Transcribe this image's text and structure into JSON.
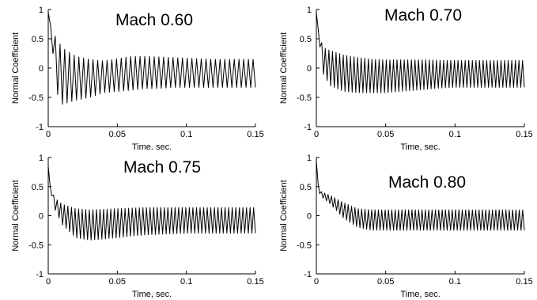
{
  "chart_data": [
    {
      "type": "line",
      "title": "Mach 0.60",
      "xlabel": "Time. sec.",
      "ylabel": "Normal Coefficient",
      "xlim": [
        0,
        0.15
      ],
      "ylim": [
        -1,
        1
      ],
      "xticks": [
        "0",
        "0.05",
        "0.1",
        "0.15"
      ],
      "yticks": [
        "1",
        "0.5",
        "0",
        "-0.5",
        "-1"
      ],
      "grid": false,
      "series": [
        {
          "values_description_free": true,
          "x": [
            0,
            0.001,
            0.002,
            0.003,
            0.005,
            0.01,
            0.02,
            0.03,
            0.04,
            0.05,
            0.06,
            0.07,
            0.08,
            0.09,
            0.1,
            0.11,
            0.12,
            0.13,
            0.14,
            0.15
          ],
          "upper": [
            0.95,
            0.75,
            0.7,
            0.65,
            0.55,
            0.35,
            0.2,
            0.15,
            0.12,
            0.16,
            0.2,
            0.2,
            0.19,
            0.18,
            0.17,
            0.16,
            0.15,
            0.15,
            0.15,
            0.15
          ],
          "lower": [
            0.95,
            0.6,
            0.55,
            0.4,
            -0.35,
            -0.62,
            -0.55,
            -0.5,
            -0.42,
            -0.4,
            -0.38,
            -0.35,
            -0.35,
            -0.33,
            -0.33,
            -0.33,
            -0.33,
            -0.33,
            -0.33,
            -0.33
          ],
          "cycles": 44
        }
      ]
    },
    {
      "type": "line",
      "title": "Mach 0.70",
      "xlabel": "Time, sec.",
      "ylabel": "Normal Coefficient",
      "xlim": [
        0,
        0.15
      ],
      "ylim": [
        -1,
        1
      ],
      "xticks": [
        "0",
        "0.05",
        "0.1",
        "0.15"
      ],
      "yticks": [
        "1",
        "0.5",
        "0",
        "-0.5",
        "-1"
      ],
      "grid": false,
      "series": [
        {
          "x": [
            0,
            0.001,
            0.002,
            0.003,
            0.005,
            0.01,
            0.02,
            0.03,
            0.04,
            0.05,
            0.06,
            0.07,
            0.08,
            0.09,
            0.1,
            0.11,
            0.12,
            0.13,
            0.14,
            0.15
          ],
          "upper": [
            0.95,
            0.7,
            0.6,
            0.5,
            0.35,
            0.3,
            0.22,
            0.18,
            0.15,
            0.14,
            0.14,
            0.14,
            0.14,
            0.13,
            0.13,
            0.13,
            0.13,
            0.13,
            0.13,
            0.13
          ],
          "lower": [
            0.95,
            0.55,
            0.45,
            0.3,
            -0.1,
            -0.3,
            -0.4,
            -0.42,
            -0.42,
            -0.42,
            -0.4,
            -0.38,
            -0.36,
            -0.34,
            -0.33,
            -0.33,
            -0.33,
            -0.33,
            -0.33,
            -0.33
          ],
          "cycles": 58
        }
      ]
    },
    {
      "type": "line",
      "title": "Mach 0.75",
      "xlabel": "Time, sec.",
      "ylabel": "Normal Coefficient",
      "xlim": [
        0,
        0.15
      ],
      "ylim": [
        -1,
        1
      ],
      "xticks": [
        "0",
        "0.05",
        "0.1",
        "0.15"
      ],
      "yticks": [
        "1",
        "0.5",
        "0",
        "-0.5",
        "-1"
      ],
      "grid": false,
      "series": [
        {
          "x": [
            0,
            0.001,
            0.002,
            0.003,
            0.005,
            0.01,
            0.02,
            0.03,
            0.04,
            0.05,
            0.06,
            0.07,
            0.08,
            0.09,
            0.1,
            0.11,
            0.12,
            0.13,
            0.14,
            0.15
          ],
          "upper": [
            0.85,
            0.55,
            0.45,
            0.4,
            0.3,
            0.2,
            0.12,
            0.1,
            0.11,
            0.12,
            0.13,
            0.14,
            0.14,
            0.14,
            0.14,
            0.14,
            0.14,
            0.14,
            0.14,
            0.14
          ],
          "lower": [
            0.85,
            0.5,
            0.4,
            0.3,
            0.1,
            -0.15,
            -0.38,
            -0.42,
            -0.4,
            -0.38,
            -0.35,
            -0.33,
            -0.32,
            -0.31,
            -0.3,
            -0.3,
            -0.3,
            -0.3,
            -0.3,
            -0.3
          ],
          "cycles": 58
        }
      ]
    },
    {
      "type": "line",
      "title": "Mach 0.80",
      "xlabel": "Time, sec.",
      "ylabel": "Normal Coefficient",
      "xlim": [
        0,
        0.15
      ],
      "ylim": [
        -1,
        1
      ],
      "xticks": [
        "0",
        "0.05",
        "0.1",
        "0.15"
      ],
      "yticks": [
        "1",
        "0.5",
        "0",
        "-0.5",
        "-1"
      ],
      "grid": false,
      "series": [
        {
          "x": [
            0,
            0.001,
            0.002,
            0.003,
            0.005,
            0.01,
            0.02,
            0.03,
            0.04,
            0.05,
            0.06,
            0.07,
            0.08,
            0.09,
            0.1,
            0.11,
            0.12,
            0.13,
            0.14,
            0.15
          ],
          "upper": [
            0.95,
            0.6,
            0.45,
            0.42,
            0.4,
            0.35,
            0.22,
            0.12,
            0.1,
            0.1,
            0.1,
            0.1,
            0.1,
            0.1,
            0.1,
            0.1,
            0.1,
            0.1,
            0.1,
            0.1
          ],
          "lower": [
            0.95,
            0.5,
            0.4,
            0.35,
            0.3,
            0.2,
            -0.05,
            -0.2,
            -0.25,
            -0.25,
            -0.25,
            -0.25,
            -0.25,
            -0.25,
            -0.25,
            -0.25,
            -0.25,
            -0.25,
            -0.25,
            -0.25
          ],
          "cycles": 62
        }
      ]
    }
  ]
}
